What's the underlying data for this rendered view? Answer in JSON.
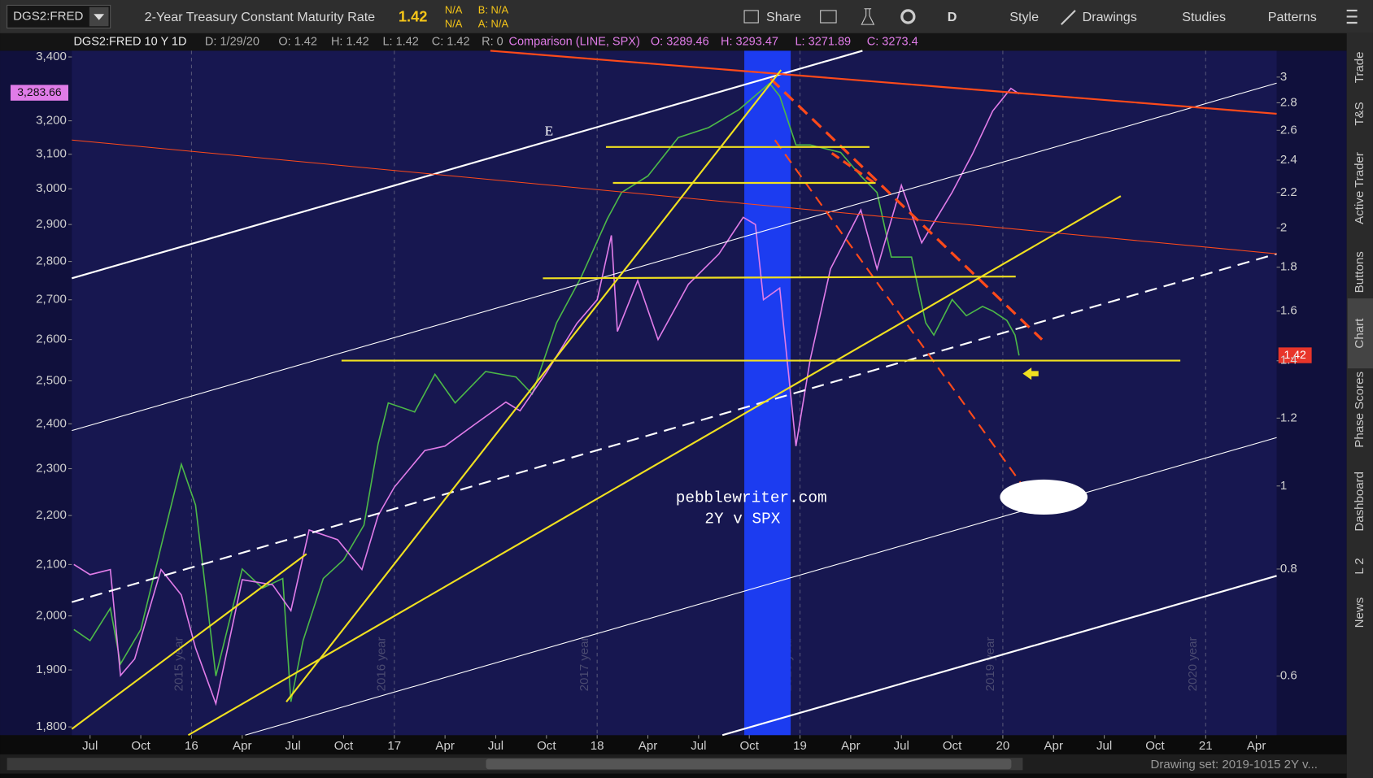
{
  "toolbar": {
    "symbol": "DGS2:FRED",
    "description": "2-Year Treasury Constant Maturity Rate",
    "last": "1.42",
    "change": "N/A",
    "change_pct": "N/A",
    "bid": "B: N/A",
    "ask": "A: N/A",
    "buttons": [
      "Share",
      "D",
      "Style",
      "Drawings",
      "Studies",
      "Patterns"
    ]
  },
  "header": {
    "study": "DGS2:FRED 10 Y 1D",
    "items": [
      "D: 1/29/20",
      "O: 1.42",
      "H: 1.42",
      "L: 1.42",
      "C: 1.42",
      "R: 0"
    ],
    "comparison": "Comparison (LINE, SPX)",
    "comparison_items": [
      "O: 3289.46",
      "H: 3293.47",
      "L: 3271.89",
      "C: 3273.4"
    ]
  },
  "chart_data": {
    "type": "line",
    "log_scale": true,
    "xlim": [
      2015.41,
      2021.35
    ],
    "xticks": [
      {
        "value": 2015.5,
        "label": "Jul"
      },
      {
        "value": 2015.75,
        "label": "Oct"
      },
      {
        "value": 2016,
        "label": "16"
      },
      {
        "value": 2016.25,
        "label": "Apr"
      },
      {
        "value": 2016.5,
        "label": "Jul"
      },
      {
        "value": 2016.75,
        "label": "Oct"
      },
      {
        "value": 2017,
        "label": "17"
      },
      {
        "value": 2017.25,
        "label": "Apr"
      },
      {
        "value": 2017.5,
        "label": "Jul"
      },
      {
        "value": 2017.75,
        "label": "Oct"
      },
      {
        "value": 2018,
        "label": "18"
      },
      {
        "value": 2018.25,
        "label": "Apr"
      },
      {
        "value": 2018.5,
        "label": "Jul"
      },
      {
        "value": 2018.75,
        "label": "Oct"
      },
      {
        "value": 2019,
        "label": "19"
      },
      {
        "value": 2019.25,
        "label": "Apr"
      },
      {
        "value": 2019.5,
        "label": "Jul"
      },
      {
        "value": 2019.75,
        "label": "Oct"
      },
      {
        "value": 2020,
        "label": "20"
      },
      {
        "value": 2020.25,
        "label": "Apr"
      },
      {
        "value": 2020.5,
        "label": "Jul"
      },
      {
        "value": 2020.75,
        "label": "Oct"
      },
      {
        "value": 2021,
        "label": "21"
      },
      {
        "value": 2021.25,
        "label": "Apr"
      }
    ],
    "ylim": [
      1786,
      3420
    ],
    "yticks": [
      {
        "value": 1800,
        "label": "1,800"
      },
      {
        "value": 1900,
        "label": "1,900"
      },
      {
        "value": 2000,
        "label": "2,000"
      },
      {
        "value": 2100,
        "label": "2,100"
      },
      {
        "value": 2200,
        "label": "2,200"
      },
      {
        "value": 2300,
        "label": "2,300"
      },
      {
        "value": 2400,
        "label": "2,400"
      },
      {
        "value": 2500,
        "label": "2,500"
      },
      {
        "value": 2600,
        "label": "2,600"
      },
      {
        "value": 2700,
        "label": "2,700"
      },
      {
        "value": 2800,
        "label": "2,800"
      },
      {
        "value": 2900,
        "label": "2,900"
      },
      {
        "value": 3000,
        "label": "3,000"
      },
      {
        "value": 3100,
        "label": "3,100"
      },
      {
        "value": 3200,
        "label": "3,200"
      },
      {
        "value": 3400,
        "label": "3,400"
      }
    ],
    "y2lim": [
      0.512,
      3.22
    ],
    "y2ticks": [
      0.6,
      0.8,
      1,
      1.2,
      1.4,
      1.6,
      1.8,
      2,
      2.2,
      2.4,
      2.6,
      2.8,
      3
    ],
    "series": [
      {
        "color": "#4cb848",
        "axis": "y2",
        "x": [
          2015.42,
          2015.5,
          2015.6,
          2015.65,
          2015.75,
          2015.85,
          2015.95,
          2016.02,
          2016.12,
          2016.25,
          2016.35,
          2016.45,
          2016.49,
          2016.55,
          2016.65,
          2016.75,
          2016.85,
          2016.92,
          2016.97,
          2017.1,
          2017.2,
          2017.3,
          2017.45,
          2017.6,
          2017.68,
          2017.8,
          2017.92,
          2018.05,
          2018.12,
          2018.25,
          2018.4,
          2018.55,
          2018.7,
          2018.85,
          2018.9,
          2018.98,
          2019.05,
          2019.2,
          2019.3,
          2019.38,
          2019.45,
          2019.55,
          2019.62,
          2019.66,
          2019.75,
          2019.82,
          2019.9,
          2019.95,
          2020.02,
          2020.06,
          2020.08
        ],
        "values": [
          0.68,
          0.66,
          0.72,
          0.62,
          0.68,
          0.85,
          1.06,
          0.95,
          0.6,
          0.8,
          0.76,
          0.78,
          0.56,
          0.66,
          0.78,
          0.82,
          0.9,
          1.12,
          1.25,
          1.22,
          1.35,
          1.25,
          1.36,
          1.34,
          1.28,
          1.55,
          1.75,
          2.05,
          2.2,
          2.3,
          2.55,
          2.62,
          2.75,
          2.95,
          2.85,
          2.5,
          2.5,
          2.45,
          2.3,
          2.2,
          1.85,
          1.85,
          1.55,
          1.5,
          1.65,
          1.58,
          1.62,
          1.6,
          1.56,
          1.5,
          1.42
        ]
      },
      {
        "color": "#e07ce8",
        "x": [
          2015.42,
          2015.5,
          2015.6,
          2015.65,
          2015.72,
          2015.85,
          2015.95,
          2016.02,
          2016.12,
          2016.25,
          2016.4,
          2016.49,
          2016.58,
          2016.72,
          2016.84,
          2016.92,
          2017.0,
          2017.15,
          2017.25,
          2017.4,
          2017.55,
          2017.62,
          2017.75,
          2017.9,
          2018.0,
          2018.07,
          2018.1,
          2018.2,
          2018.3,
          2018.45,
          2018.6,
          2018.72,
          2018.78,
          2018.82,
          2018.9,
          2018.98,
          2019.05,
          2019.15,
          2019.3,
          2019.38,
          2019.5,
          2019.6,
          2019.75,
          2019.85,
          2019.95,
          2020.04,
          2020.08
        ],
        "values": [
          2100,
          2080,
          2090,
          1890,
          1920,
          2090,
          2040,
          1940,
          1840,
          2070,
          2060,
          2010,
          2170,
          2150,
          2090,
          2200,
          2260,
          2340,
          2350,
          2400,
          2450,
          2430,
          2520,
          2640,
          2700,
          2870,
          2620,
          2750,
          2600,
          2740,
          2820,
          2920,
          2900,
          2700,
          2730,
          2350,
          2550,
          2780,
          2940,
          2780,
          3010,
          2850,
          2990,
          3100,
          3230,
          3300,
          3283
        ]
      }
    ],
    "last_label_left": "3,283.66",
    "last_label_right": "1.42",
    "year_lines": [
      {
        "value": 2016,
        "label": "2015 year"
      },
      {
        "value": 2017,
        "label": "2016 year"
      },
      {
        "value": 2018,
        "label": "2017 year"
      },
      {
        "value": 2019,
        "label": "2018 year"
      },
      {
        "value": 2020,
        "label": "2019 year"
      },
      {
        "value": 2021,
        "label": "2020 year"
      }
    ],
    "annotations": [
      "E",
      "pebblewriter.com",
      "2Y v SPX"
    ]
  },
  "sidebar": [
    "Trade",
    "T&S",
    "Active Trader",
    "Buttons",
    "Chart",
    "Phase Scores",
    "Dashboard",
    "L 2",
    "News"
  ],
  "footer": {
    "drawing_set": "Drawing set: 2019-1015 2Y v..."
  }
}
